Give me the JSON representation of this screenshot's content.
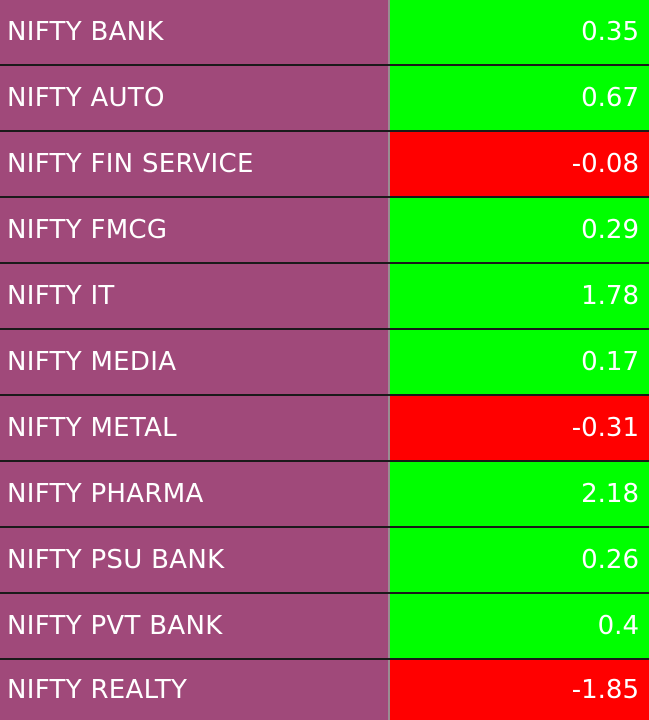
{
  "colors": {
    "name_bg": "#a0497a",
    "positive": "#00ff00",
    "negative": "#ff0000",
    "text": "#ffffff"
  },
  "rows": [
    {
      "name": "NIFTY BANK",
      "value": "0.35"
    },
    {
      "name": "NIFTY AUTO",
      "value": "0.67"
    },
    {
      "name": "NIFTY FIN SERVICE",
      "value": "-0.08"
    },
    {
      "name": "NIFTY FMCG",
      "value": "0.29"
    },
    {
      "name": "NIFTY IT",
      "value": "1.78"
    },
    {
      "name": "NIFTY MEDIA",
      "value": "0.17"
    },
    {
      "name": "NIFTY METAL",
      "value": "-0.31"
    },
    {
      "name": "NIFTY PHARMA",
      "value": "2.18"
    },
    {
      "name": "NIFTY PSU BANK",
      "value": "0.26"
    },
    {
      "name": "NIFTY PVT BANK",
      "value": "0.4"
    },
    {
      "name": "NIFTY REALTY",
      "value": "-1.85"
    }
  ]
}
